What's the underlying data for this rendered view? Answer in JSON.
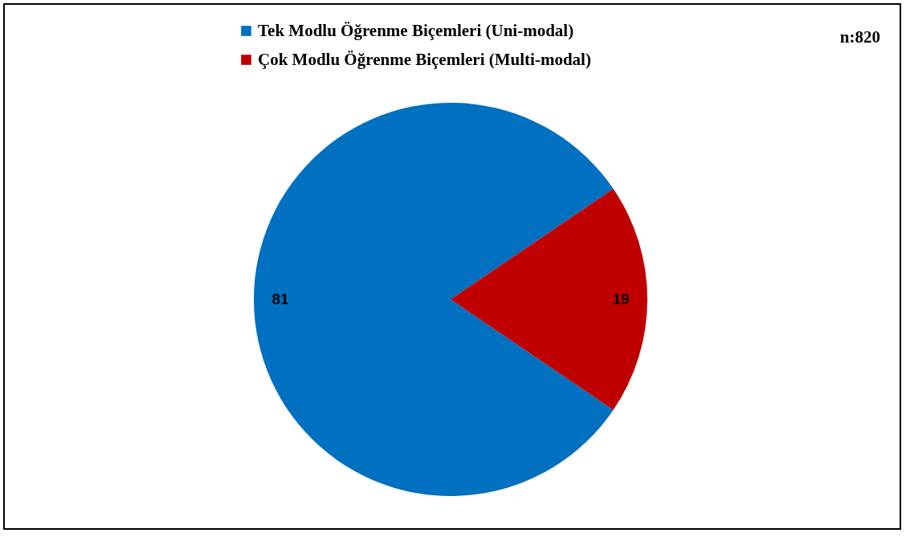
{
  "chart_data": {
    "type": "pie",
    "categories": [
      "Tek Modlu Öğrenme Biçemleri (Uni-modal)",
      "Çok Modlu Öğrenme Biçemleri (Multi-modal)"
    ],
    "values": [
      81,
      19
    ],
    "colors": [
      "#0070c0",
      "#c00000"
    ],
    "data_labels": true,
    "legend": "top",
    "annotations": [
      "n:820"
    ]
  }
}
